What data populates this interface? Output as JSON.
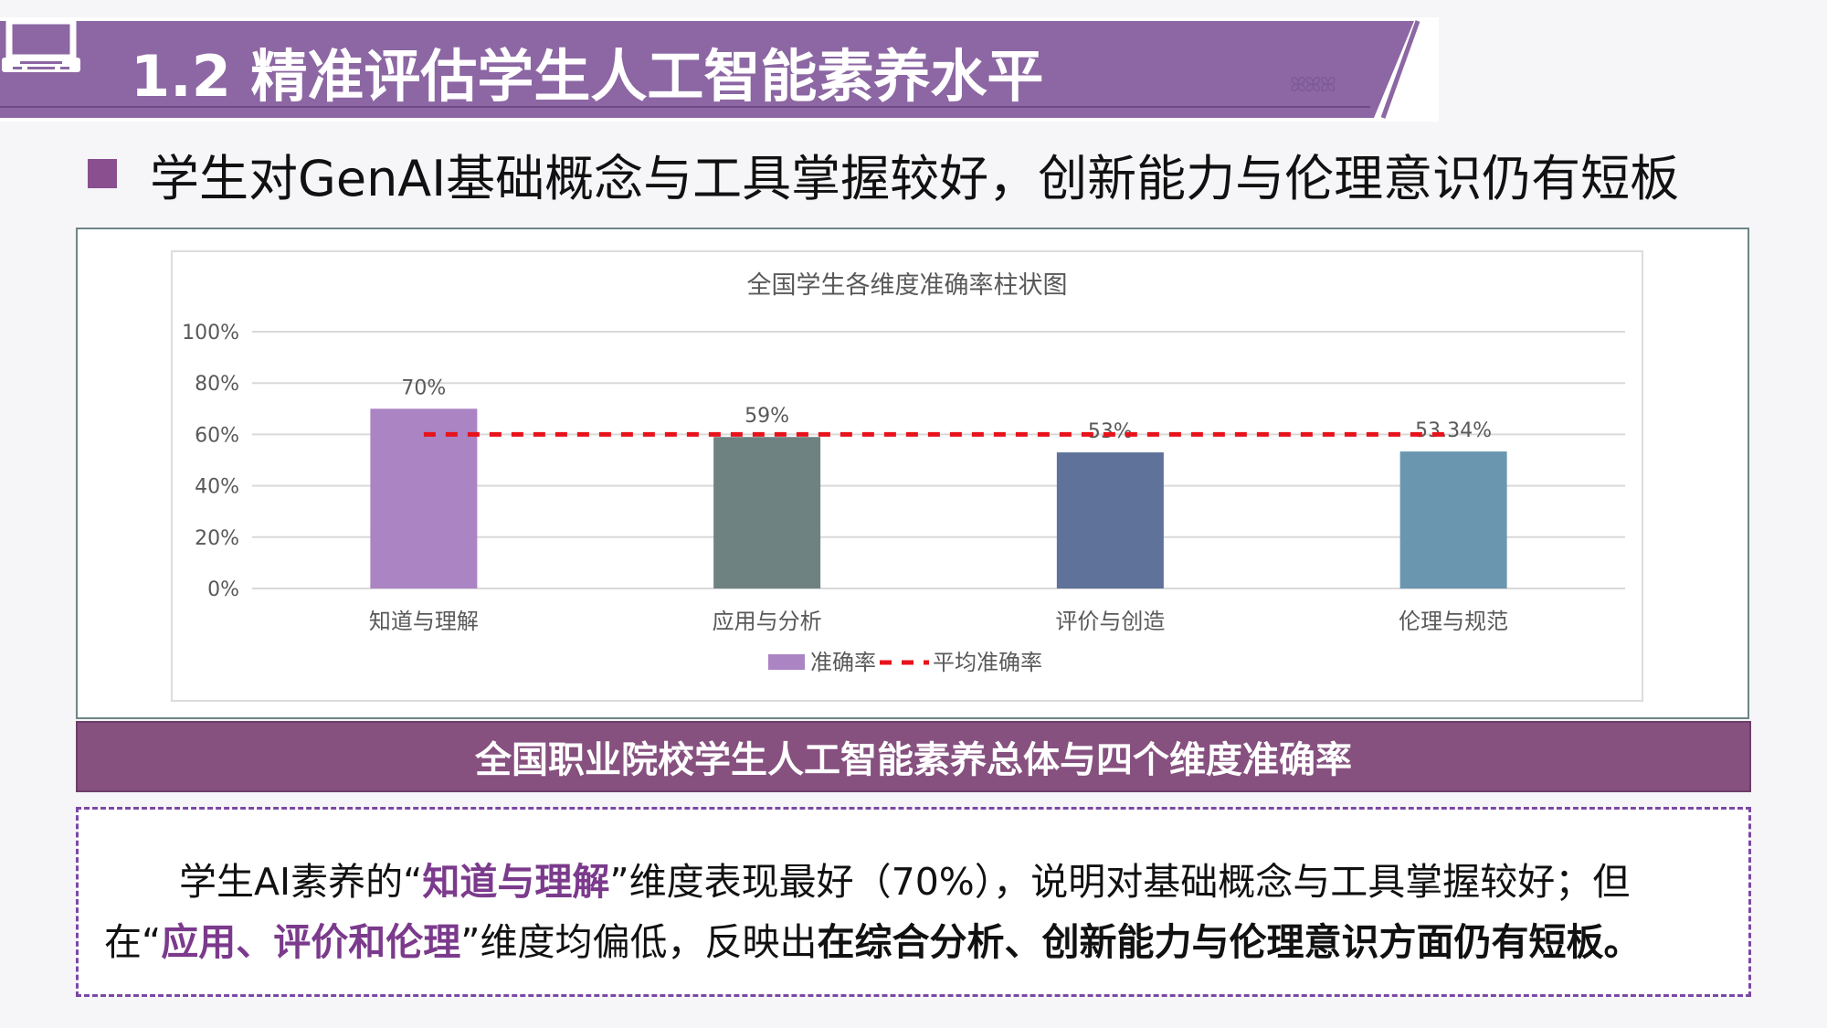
{
  "header": {
    "title": "1.2 精准评估学生人工智能素养水平",
    "icon": "laptop-icon",
    "color": "#8c67a3"
  },
  "subtitle": "学生对GenAI基础概念与工具掌握较好，创新能力与伦理意识仍有短板",
  "chart_data": {
    "type": "bar",
    "title": "全国学生各维度准确率柱状图",
    "categories": [
      "知道与理解",
      "应用与分析",
      "评价与创造",
      "伦理与规范"
    ],
    "series": [
      {
        "name": "准确率",
        "values": [
          70,
          59,
          53,
          53.34
        ],
        "labels": [
          "70%",
          "59%",
          "53%",
          "53.34%"
        ],
        "colors": [
          "#ab84c4",
          "#6e8281",
          "#5f7299",
          "#6a96b0"
        ]
      },
      {
        "name": "平均准确率",
        "type": "line",
        "style": "dashed",
        "value": 60,
        "color": "#e8121b"
      }
    ],
    "yticks": [
      "0%",
      "20%",
      "40%",
      "60%",
      "80%",
      "100%"
    ],
    "ylim": [
      0,
      100
    ],
    "grid": true,
    "legend": "bottom"
  },
  "caption": "全国职业院校学生人工智能素养总体与四个维度准确率",
  "note": {
    "p1": "学生AI素养的",
    "q1": "知道与理解",
    "p2": "维度表现最好（70%），说明对基础概念与工具掌握较好；但在",
    "q2": "应用、评价和伦理",
    "p3": "维度均偏低，反映出",
    "bold": "在综合分析、创新能力与伦理意识方面仍有短板。"
  }
}
